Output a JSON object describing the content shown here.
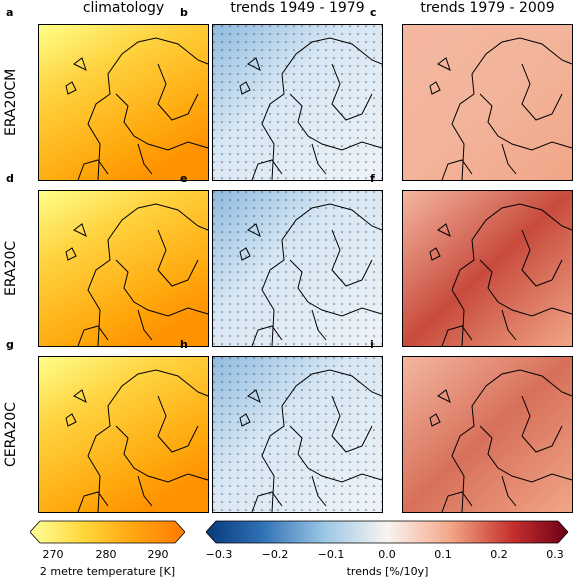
{
  "columns": [
    "climatology",
    "trends 1949 - 1979",
    "trends 1979 - 2009"
  ],
  "rows": [
    "ERA20CM",
    "ERA20C",
    "CERA20C"
  ],
  "panel_letters": [
    "a",
    "b",
    "c",
    "d",
    "e",
    "f",
    "g",
    "h",
    "i"
  ],
  "colorbar_left": {
    "label": "2 metre temperature [K]",
    "ticks": [
      "270",
      "280",
      "290"
    ]
  },
  "colorbar_right": {
    "label": "trends [%/10y]",
    "ticks": [
      "−0.3",
      "−0.2",
      "−0.1",
      "0.0",
      "0.1",
      "0.2",
      "0.3"
    ]
  }
}
